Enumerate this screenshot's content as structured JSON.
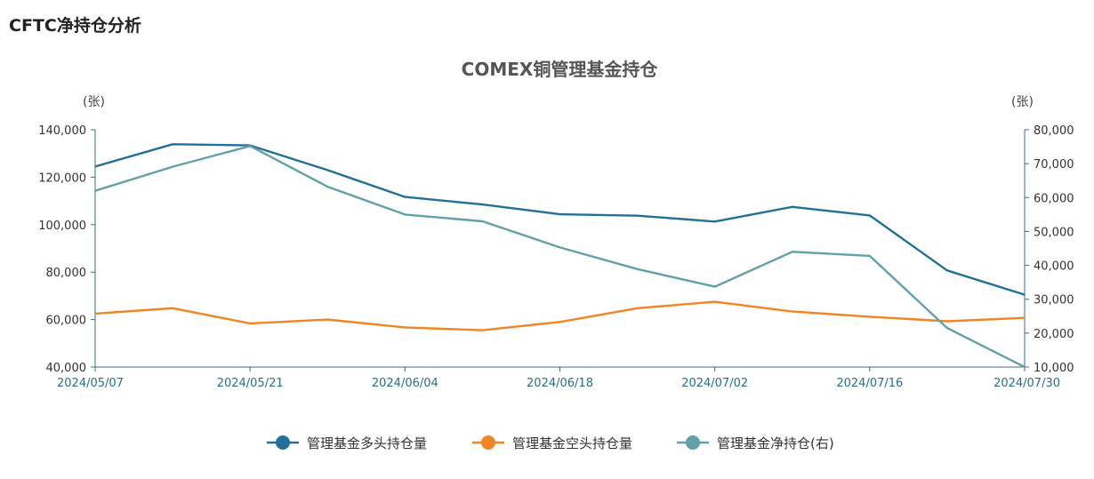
{
  "page": {
    "title": "CFTC净持仓分析"
  },
  "chart_data": {
    "type": "line",
    "title": "COMEX铜管理基金持仓",
    "left_axis_unit": "(张)",
    "right_axis_unit": "(张)",
    "x": [
      "2024/05/07",
      "2024/05/14",
      "2024/05/21",
      "2024/05/28",
      "2024/06/04",
      "2024/06/11",
      "2024/06/18",
      "2024/06/25",
      "2024/07/02",
      "2024/07/09",
      "2024/07/16",
      "2024/07/23",
      "2024/07/30"
    ],
    "x_tick_labels": [
      "2024/05/07",
      "2024/05/21",
      "2024/06/04",
      "2024/06/18",
      "2024/07/02",
      "2024/07/16",
      "2024/07/30"
    ],
    "left_ylim": [
      40000,
      140000
    ],
    "left_yticks": [
      "40,000",
      "60,000",
      "80,000",
      "100,000",
      "120,000",
      "140,000"
    ],
    "right_ylim": [
      10000,
      80000
    ],
    "right_yticks": [
      "10,000",
      "20,000",
      "30,000",
      "40,000",
      "50,000",
      "60,000",
      "70,000",
      "80,000"
    ],
    "grid": false,
    "legend_position": "bottom",
    "series": [
      {
        "name": "管理基金多头持仓量",
        "axis": "left",
        "color": "#21709a",
        "values": [
          124500,
          133900,
          133400,
          123000,
          111700,
          108500,
          104400,
          103800,
          101300,
          107500,
          103900,
          80700,
          70500
        ]
      },
      {
        "name": "管理基金空头持仓量",
        "axis": "left",
        "color": "#f08522",
        "values": [
          62500,
          64800,
          58400,
          60000,
          56700,
          55500,
          59000,
          64800,
          67500,
          63400,
          61200,
          59300,
          60700
        ]
      },
      {
        "name": "管理基金净持仓(右)",
        "axis": "right",
        "color": "#61a1a8",
        "values": [
          62000,
          69100,
          75200,
          63200,
          55000,
          53000,
          45300,
          38900,
          33700,
          44000,
          42800,
          21500,
          10000
        ]
      }
    ]
  }
}
